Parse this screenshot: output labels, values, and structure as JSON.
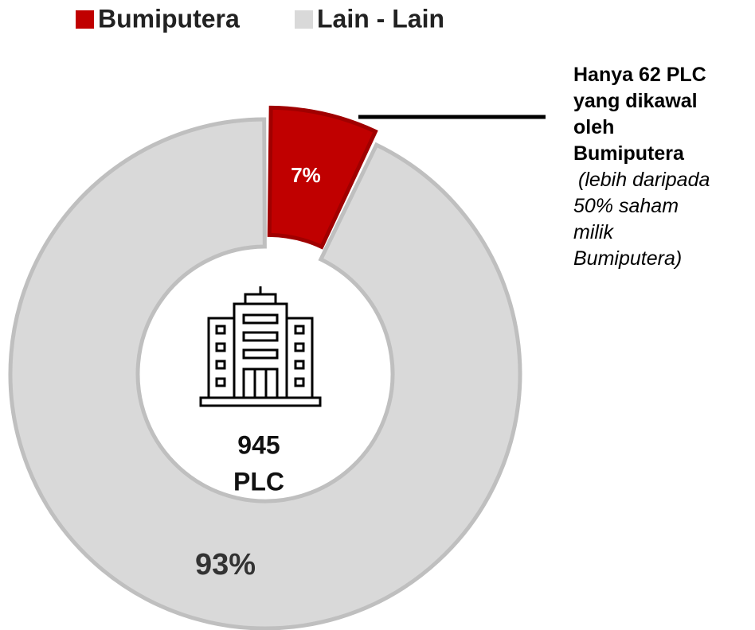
{
  "chart_data": {
    "type": "pie",
    "categories": [
      "Bumiputera",
      "Lain - Lain"
    ],
    "values": [
      7,
      93
    ],
    "value_labels": [
      "7%",
      "93%"
    ],
    "colors": [
      "#c00000",
      "#d9d9d9"
    ],
    "edge_colors": [
      "#a00000",
      "#bfbfbf"
    ],
    "center_label": [
      "945",
      "PLC"
    ],
    "annotation": [
      "Hanya 62 PLC",
      "yang dikawal",
      "oleh",
      "Bumiputera"
    ],
    "annotation_note": [
      "(lebih daripada",
      "50% saham",
      "milik",
      "Bumiputera)"
    ],
    "legend": "top"
  }
}
